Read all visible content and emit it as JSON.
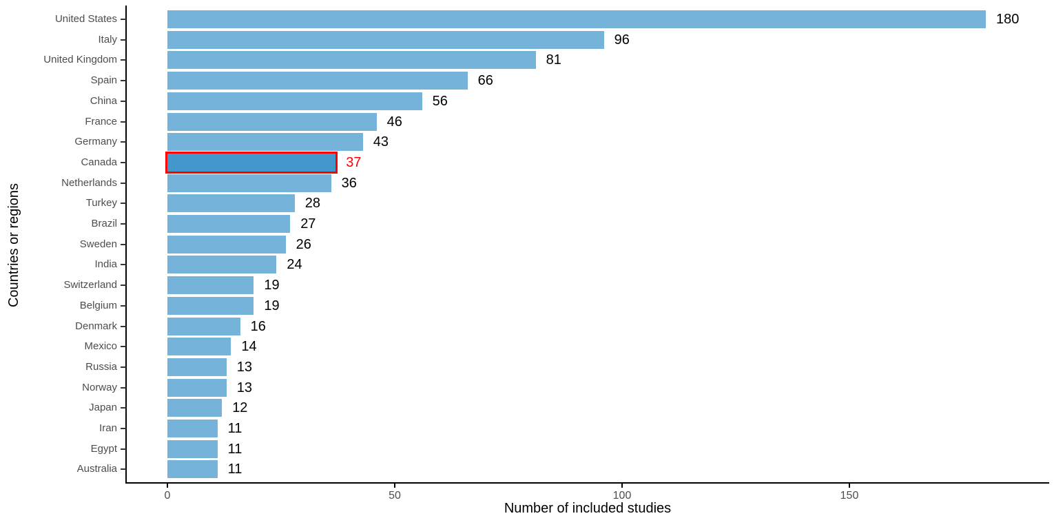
{
  "chart_data": {
    "type": "bar",
    "orientation": "horizontal",
    "title": "",
    "xlabel": "Number of included studies",
    "ylabel": "Countries or regions",
    "categories": [
      "United States",
      "Italy",
      "United Kingdom",
      "Spain",
      "China",
      "France",
      "Germany",
      "Canada",
      "Netherlands",
      "Turkey",
      "Brazil",
      "Sweden",
      "India",
      "Switzerland",
      "Belgium",
      "Denmark",
      "Mexico",
      "Russia",
      "Norway",
      "Japan",
      "Iran",
      "Egypt",
      "Australia"
    ],
    "values": [
      180,
      96,
      81,
      66,
      56,
      46,
      43,
      37,
      36,
      28,
      27,
      26,
      24,
      19,
      19,
      16,
      14,
      13,
      13,
      12,
      11,
      11,
      11
    ],
    "bar_value_labels": [
      "180",
      "96",
      "81",
      "66",
      "56",
      "46",
      "43",
      "37",
      "36",
      "28",
      "27",
      "26",
      "24",
      "19",
      "19",
      "16",
      "14",
      "13",
      "13",
      "12",
      "11",
      "11",
      "11"
    ],
    "xticks": [
      "0",
      "50",
      "100",
      "150"
    ],
    "xtick_values": [
      0,
      50,
      100,
      150
    ],
    "xlim": [
      0,
      193
    ],
    "grid": false,
    "legend": false,
    "highlight": {
      "category": "Canada",
      "value": 37,
      "bar_color": "#4297cb",
      "outline_color": "#ff0000",
      "label_color": "#ff0000"
    },
    "colors": {
      "bar": "#75b3da",
      "axis_line": "#000000",
      "tick_label": "#4d4d4d",
      "category_label": "#4d4d4d",
      "value_label": "#000000",
      "axis_title": "#000000",
      "background": "#ffffff"
    }
  }
}
